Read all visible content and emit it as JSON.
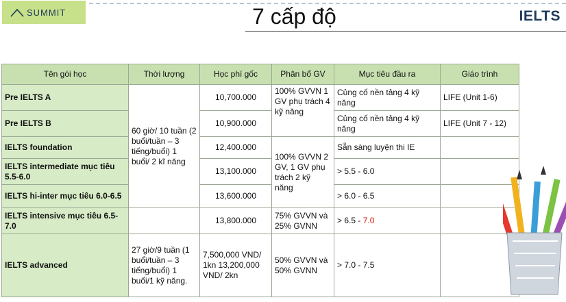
{
  "logo": {
    "text": "SUMMIT"
  },
  "title": "7 cấp độ",
  "brand": "IELTS",
  "table": {
    "headers": [
      "Tên gói học",
      "Thời lượng",
      "Học phí gốc",
      "Phân bổ GV",
      "Mục tiêu đầu ra",
      "Giáo trình"
    ],
    "rows": [
      {
        "name": "Pre IELTS A",
        "fee": "10,700.000",
        "target": "Củng cố nền tảng 4 kỹ năng",
        "book": "LIFE (Unit 1-6)"
      },
      {
        "name": "Pre IELTS B",
        "fee": "10,900.000",
        "target": "Củng cố nền tảng 4 kỹ năng",
        "book": "LIFE (Unit 7 - 12)"
      },
      {
        "name": "IELTS foundation",
        "fee": "12,400.000",
        "target": "Sẵn sàng luyện thi IE",
        "book": ""
      },
      {
        "name": "IELTS intermediate mục tiêu 5.5-6.0",
        "fee": "13,100.000",
        "target": "> 5.5 - 6.0",
        "book": ""
      },
      {
        "name": "IELTS hi-inter mục tiêu 6.0-6.5",
        "fee": "13,600.000",
        "target": "> 6.0 - 6.5",
        "book": ""
      },
      {
        "name": "IELTS intensive mục tiêu 6.5-7.0",
        "fee": "13,800.000",
        "target_prefix": "> 6.5 - ",
        "target_red": "7.0",
        "book": ""
      },
      {
        "name": "IELTS advanced",
        "duration": "27 giờ/9 tuần (1 buổi/tuần – 3 tiếng/buổi) 1 buổi/1 kỹ năng.",
        "fee": "7,500,000 VND/ 1kn 13,200,000 VND/ 2kn",
        "teacher": "50% GVVN và 50% GVNN",
        "target": "> 7.0 - 7.5",
        "book": ""
      }
    ],
    "duration_shared": "60 giờ/ 10 tuần (2 buổi/tuần – 3 tiếng/buổi) 1 buổi/ 2 kĩ năng",
    "teacher_ab": "100% GVVN 1 GV phụ trách 4 kỹ năng",
    "teacher_mid": "100% GVVN 2 GV, 1 GV phụ trách 2 kỹ năng",
    "teacher_intensive": "75% GVVN và 25% GVNN"
  }
}
